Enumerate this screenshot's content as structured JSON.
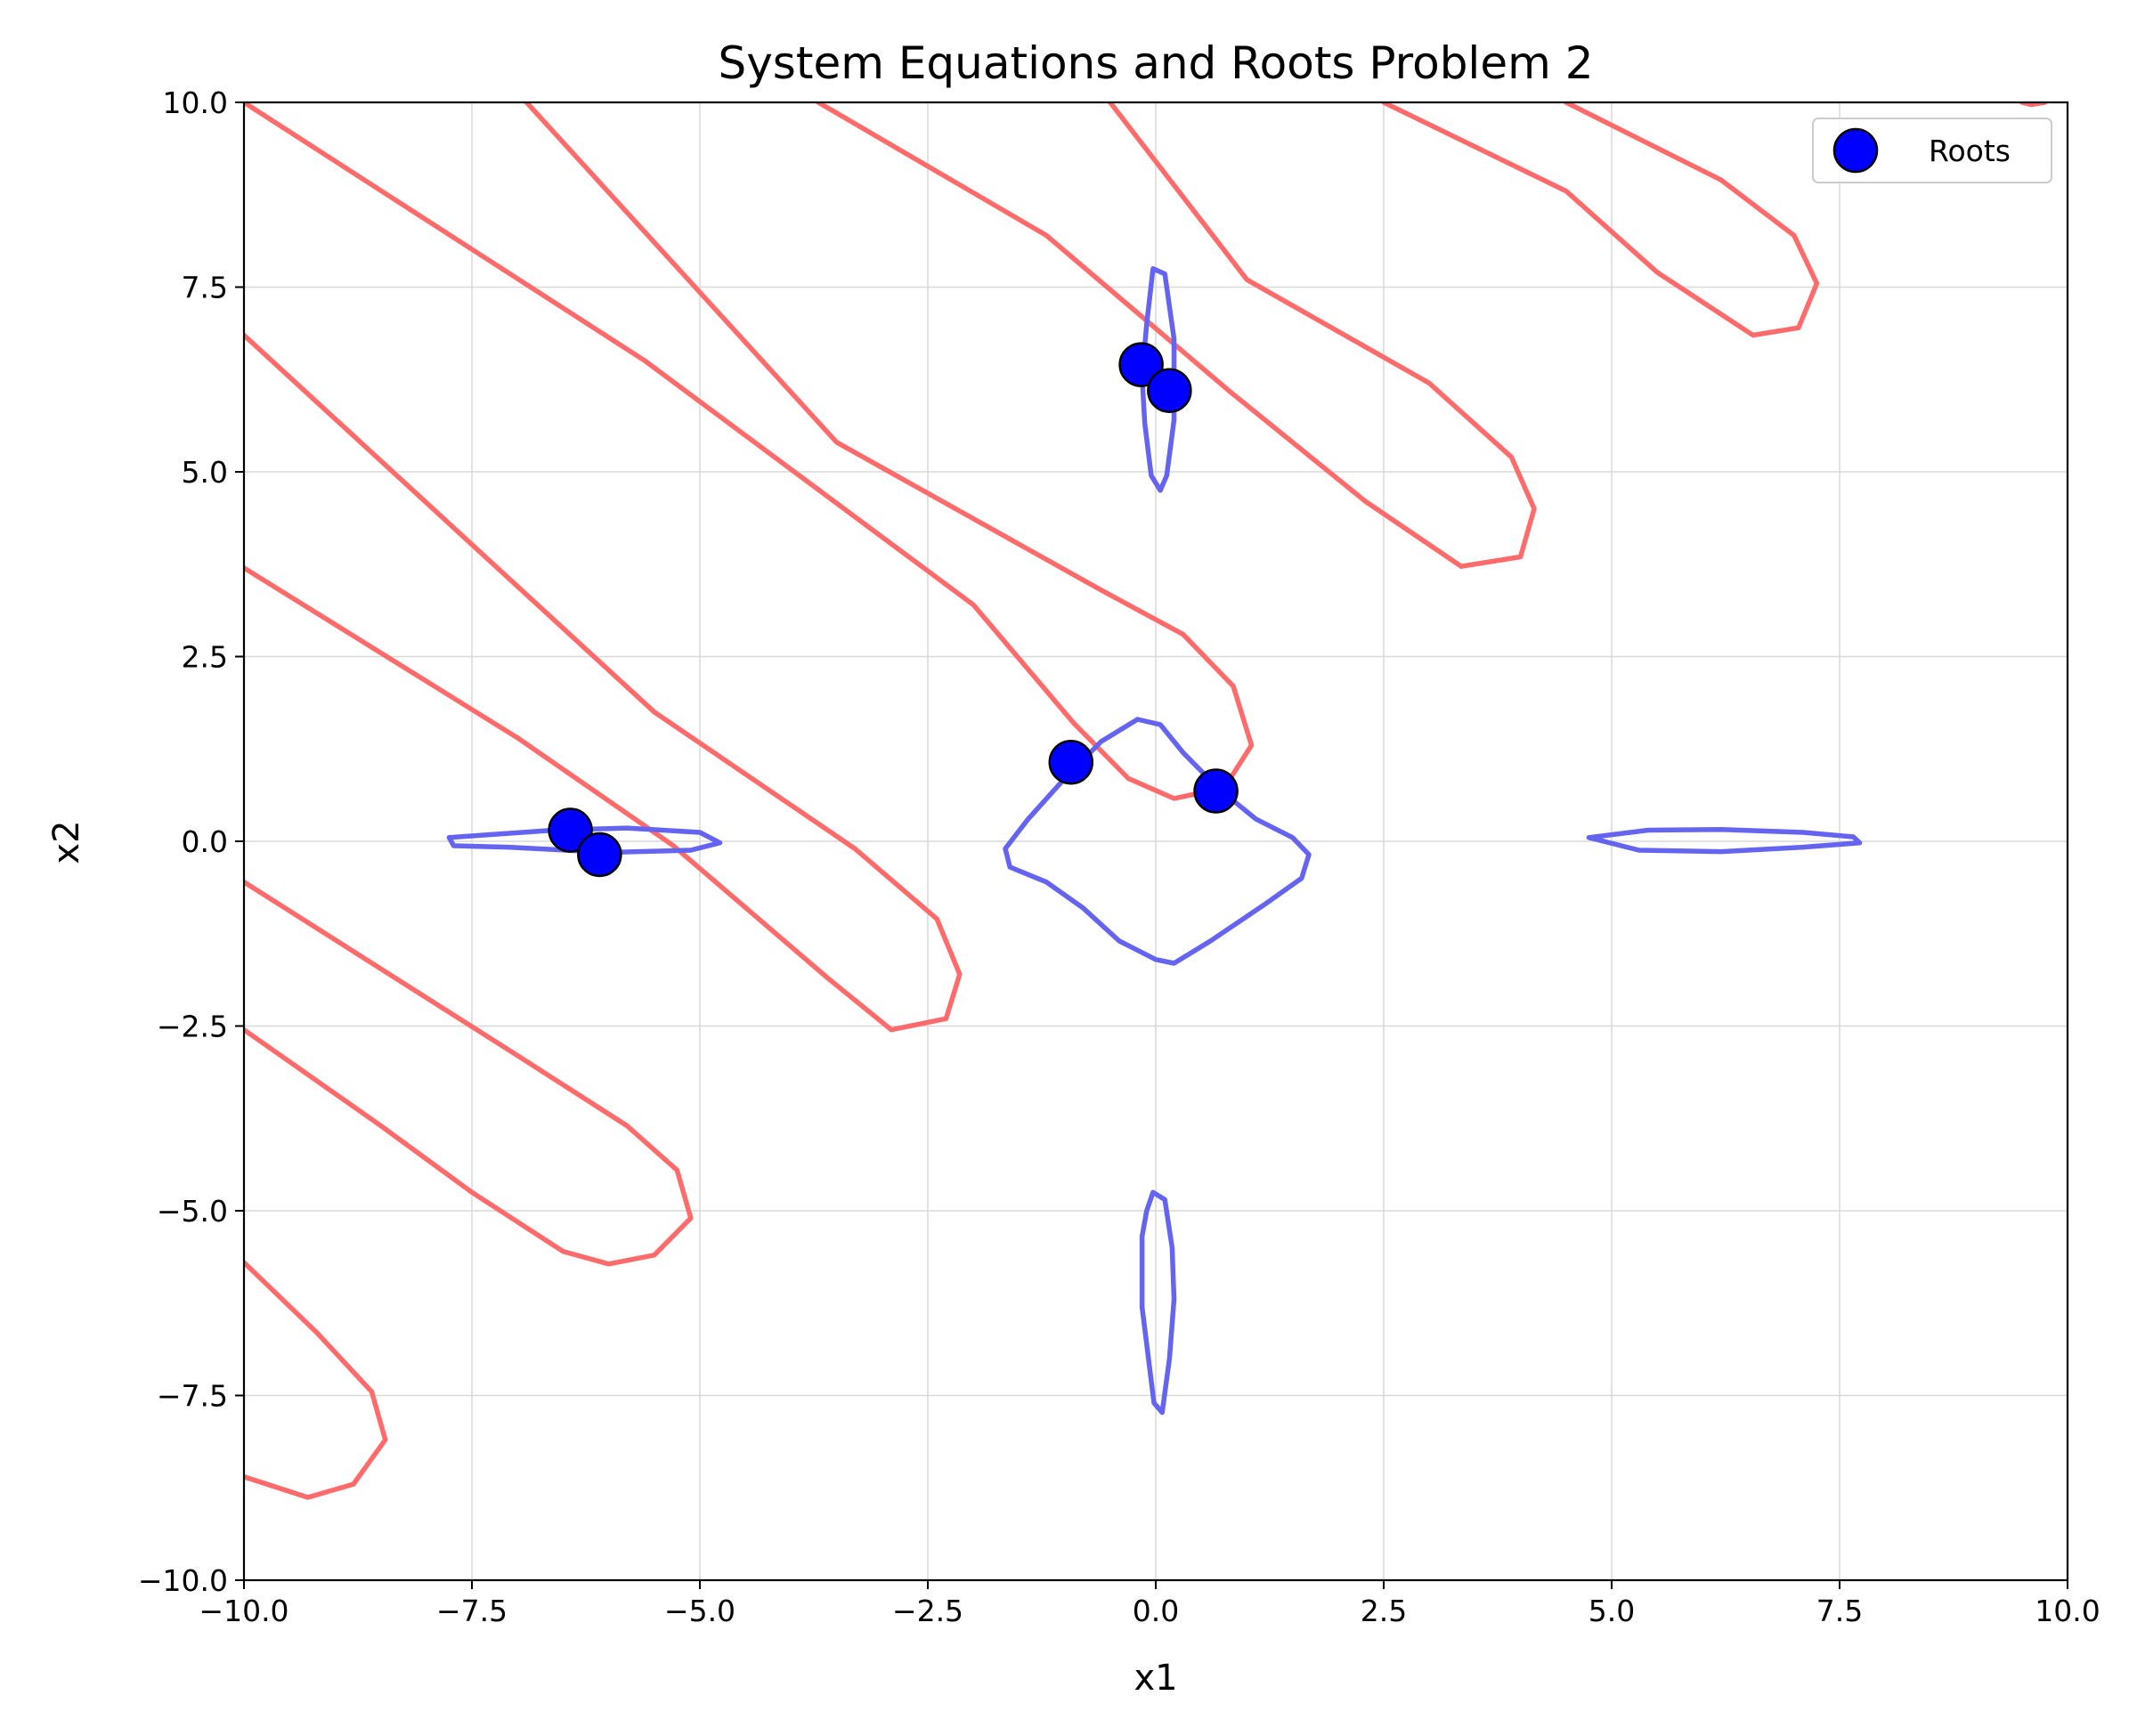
{
  "chart_data": {
    "type": "line",
    "title": "System Equations and Roots Problem 2",
    "xlabel": "x1",
    "ylabel": "x2",
    "xlim": [
      -10,
      10
    ],
    "ylim": [
      -10,
      10
    ],
    "grid": true,
    "legend_position": "top-right",
    "x_ticks": [
      -10,
      -7.5,
      -5,
      -2.5,
      0,
      2.5,
      5,
      7.5,
      10
    ],
    "y_ticks": [
      -10,
      -7.5,
      -5,
      -2.5,
      0,
      2.5,
      5,
      7.5,
      10
    ],
    "x_tick_labels": [
      "−10.0",
      "−7.5",
      "−5.0",
      "−2.5",
      "0.0",
      "2.5",
      "5.0",
      "7.5",
      "10.0"
    ],
    "y_tick_labels": [
      "−10.0",
      "−7.5",
      "−5.0",
      "−2.5",
      "0.0",
      "2.5",
      "5.0",
      "7.5",
      "10.0"
    ],
    "series": [
      {
        "kind": "contour",
        "color": "#ff6b6b",
        "curves": [
          [
            [
              -10,
              -8.6
            ],
            [
              -9.3,
              -8.88
            ],
            [
              -8.8,
              -8.7
            ],
            [
              -8.45,
              -8.1
            ],
            [
              -8.6,
              -7.45
            ],
            [
              -9.2,
              -6.65
            ],
            [
              -10,
              -5.7
            ]
          ],
          [
            [
              -10,
              -2.55
            ],
            [
              -8.5,
              -3.85
            ],
            [
              -7.5,
              -4.75
            ],
            [
              -6.5,
              -5.55
            ],
            [
              -6.0,
              -5.72
            ],
            [
              -5.5,
              -5.6
            ],
            [
              -5.1,
              -5.1
            ],
            [
              -5.25,
              -4.45
            ],
            [
              -5.8,
              -3.85
            ],
            [
              -7.0,
              -2.9
            ],
            [
              -10,
              -0.55
            ]
          ],
          [
            [
              -10,
              3.7
            ],
            [
              -7.0,
              1.4
            ],
            [
              -5.3,
              -0.05
            ],
            [
              -3.6,
              -1.85
            ],
            [
              -2.9,
              -2.55
            ],
            [
              -2.3,
              -2.4
            ],
            [
              -2.15,
              -1.8
            ],
            [
              -2.4,
              -1.05
            ],
            [
              -3.3,
              -0.1
            ],
            [
              -5.5,
              1.75
            ],
            [
              -10,
              6.85
            ]
          ],
          [
            [
              -10,
              10
            ],
            [
              -5.6,
              6.5
            ],
            [
              -2.0,
              3.2
            ],
            [
              -0.9,
              1.6
            ],
            [
              -0.3,
              0.85
            ],
            [
              0.2,
              0.58
            ],
            [
              0.75,
              0.72
            ],
            [
              1.05,
              1.3
            ],
            [
              0.85,
              2.1
            ],
            [
              0.3,
              2.8
            ],
            [
              -0.6,
              3.4
            ],
            [
              -3.5,
              5.4
            ],
            [
              -6.9,
              10
            ]
          ],
          [
            [
              -3.7,
              10
            ],
            [
              -1.2,
              8.2
            ],
            [
              0.8,
              6.1
            ],
            [
              2.3,
              4.6
            ],
            [
              3.35,
              3.72
            ],
            [
              4.0,
              3.85
            ],
            [
              4.15,
              4.5
            ],
            [
              3.9,
              5.2
            ],
            [
              3.0,
              6.2
            ],
            [
              1.0,
              7.6
            ],
            [
              -0.5,
              10
            ]
          ],
          [
            [
              2.5,
              10
            ],
            [
              4.5,
              8.8
            ],
            [
              5.5,
              7.7
            ],
            [
              6.55,
              6.85
            ],
            [
              7.05,
              6.95
            ],
            [
              7.25,
              7.55
            ],
            [
              7.0,
              8.2
            ],
            [
              6.2,
              8.95
            ],
            [
              4.5,
              10
            ]
          ],
          [
            [
              9.5,
              10
            ],
            [
              9.6,
              9.97
            ],
            [
              9.75,
              10
            ]
          ]
        ]
      },
      {
        "kind": "contour",
        "color": "#6464f0",
        "curves": [
          [
            [
              -7.75,
              0.05
            ],
            [
              -6.6,
              0.15
            ],
            [
              -5.8,
              0.18
            ],
            [
              -5.0,
              0.12
            ],
            [
              -4.78,
              -0.02
            ],
            [
              -5.1,
              -0.12
            ],
            [
              -6.0,
              -0.15
            ],
            [
              -7.1,
              -0.08
            ],
            [
              -7.7,
              -0.06
            ],
            [
              -7.75,
              0.05
            ]
          ],
          [
            [
              4.75,
              0.05
            ],
            [
              5.4,
              0.15
            ],
            [
              6.2,
              0.16
            ],
            [
              7.1,
              0.12
            ],
            [
              7.65,
              0.06
            ],
            [
              7.72,
              -0.02
            ],
            [
              7.1,
              -0.08
            ],
            [
              6.2,
              -0.14
            ],
            [
              5.3,
              -0.12
            ],
            [
              4.75,
              0.05
            ]
          ],
          [
            [
              -0.03,
              7.75
            ],
            [
              0.1,
              7.68
            ],
            [
              0.2,
              6.8
            ],
            [
              0.2,
              5.7
            ],
            [
              0.12,
              4.95
            ],
            [
              0.05,
              4.75
            ],
            [
              -0.05,
              4.95
            ],
            [
              -0.12,
              5.65
            ],
            [
              -0.15,
              6.3
            ],
            [
              -0.1,
              7.0
            ],
            [
              -0.03,
              7.75
            ]
          ],
          [
            [
              -0.03,
              -4.75
            ],
            [
              0.1,
              -4.85
            ],
            [
              0.18,
              -5.5
            ],
            [
              0.2,
              -6.2
            ],
            [
              0.15,
              -7.0
            ],
            [
              0.07,
              -7.73
            ],
            [
              -0.02,
              -7.6
            ],
            [
              -0.08,
              -7.0
            ],
            [
              -0.15,
              -6.3
            ],
            [
              -0.15,
              -5.35
            ],
            [
              -0.1,
              -5.0
            ],
            [
              -0.03,
              -4.75
            ]
          ],
          [
            [
              -0.2,
              1.65
            ],
            [
              0.05,
              1.58
            ],
            [
              0.3,
              1.2
            ],
            [
              0.7,
              0.7
            ],
            [
              1.1,
              0.3
            ],
            [
              1.5,
              0.05
            ],
            [
              1.68,
              -0.18
            ],
            [
              1.6,
              -0.5
            ],
            [
              1.2,
              -0.85
            ],
            [
              0.6,
              -1.35
            ],
            [
              0.2,
              -1.65
            ],
            [
              0.0,
              -1.6
            ],
            [
              -0.4,
              -1.35
            ],
            [
              -0.8,
              -0.9
            ],
            [
              -1.2,
              -0.55
            ],
            [
              -1.6,
              -0.35
            ],
            [
              -1.65,
              -0.1
            ],
            [
              -1.4,
              0.3
            ],
            [
              -1.0,
              0.85
            ],
            [
              -0.6,
              1.35
            ],
            [
              -0.2,
              1.65
            ]
          ]
        ]
      },
      {
        "name": "Roots",
        "kind": "scatter",
        "color": "#0000ff",
        "edgecolor": "#000000",
        "x": [
          -6.42,
          -6.1,
          -0.16,
          0.15,
          -0.93,
          0.66
        ],
        "y": [
          0.15,
          -0.18,
          6.45,
          6.1,
          1.07,
          0.68
        ]
      }
    ]
  }
}
